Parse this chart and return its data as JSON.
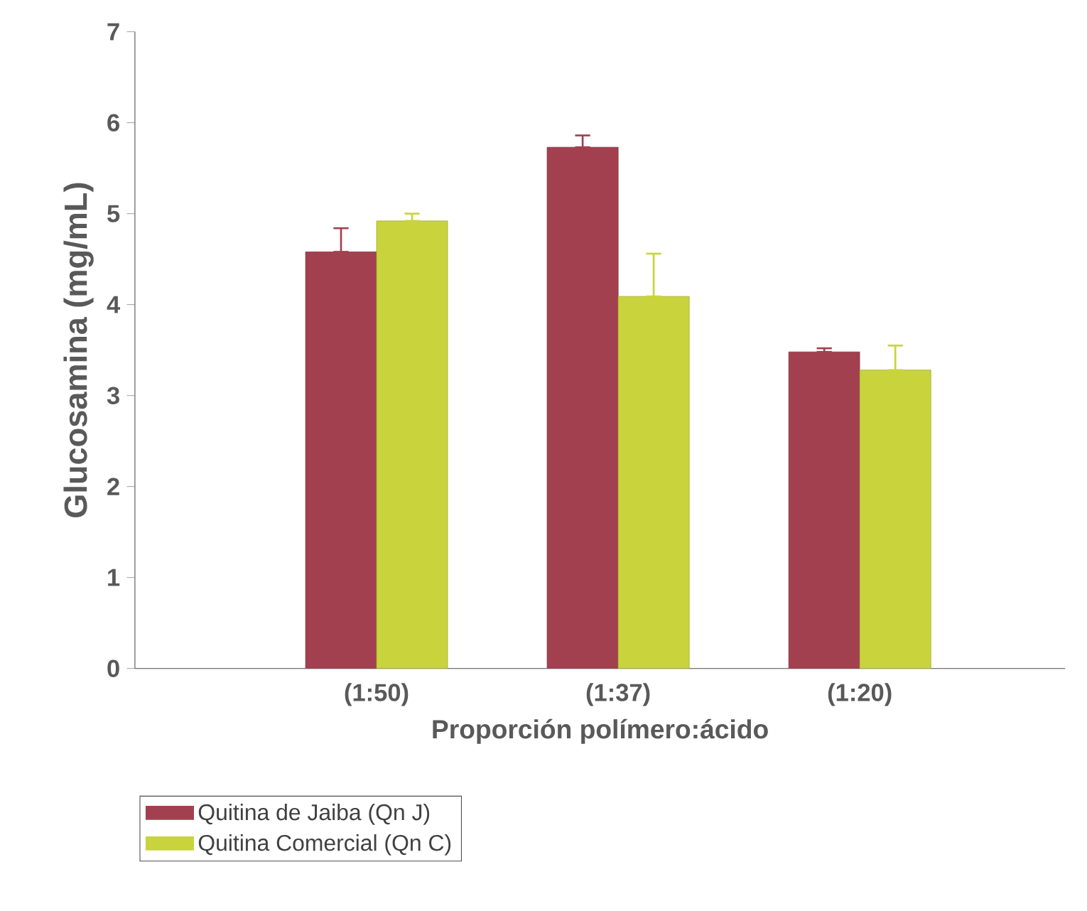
{
  "chart_data": {
    "type": "bar",
    "xlabel": "Proporción polímero:ácido",
    "ylabel": "Glucosamina (mg/mL)",
    "categories": [
      "(1:50)",
      "(1:37)",
      "(1:20)"
    ],
    "series": [
      {
        "name": "Quitina de Jaiba (Qn J)",
        "color": "#a3404f",
        "values": [
          4.58,
          5.73,
          3.48
        ],
        "errors": [
          [
            4.58,
            4.84
          ],
          [
            5.73,
            5.86
          ],
          [
            3.48,
            3.52
          ]
        ]
      },
      {
        "name": "Quitina Comercial (Qn C)",
        "color": "#c9d43c",
        "values": [
          4.92,
          4.09,
          3.28
        ],
        "errors": [
          [
            4.92,
            5.0
          ],
          [
            4.09,
            4.56
          ],
          [
            3.28,
            3.55
          ]
        ]
      }
    ],
    "ylim": [
      0,
      7
    ],
    "yticks": [
      0,
      1,
      2,
      3,
      4,
      5,
      6,
      7
    ],
    "grid": false,
    "legend": "bottom left"
  }
}
